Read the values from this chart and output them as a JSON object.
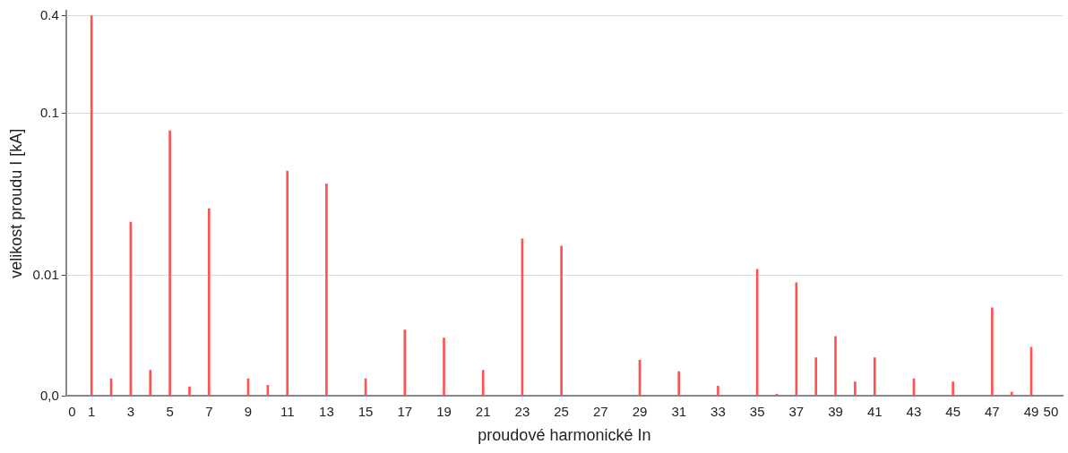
{
  "chart_data": {
    "type": "bar",
    "xlabel": "proudové harmonické In",
    "ylabel": "velikost proudu I [kA]",
    "x": [
      1,
      2,
      3,
      4,
      5,
      6,
      7,
      9,
      10,
      11,
      13,
      15,
      17,
      19,
      21,
      23,
      25,
      29,
      31,
      33,
      35,
      36,
      37,
      38,
      39,
      40,
      41,
      43,
      45,
      47,
      48,
      49
    ],
    "values": [
      0.4,
      0.0023,
      0.0213,
      0.0026,
      0.078,
      0.00205,
      0.0258,
      0.0023,
      0.0021,
      0.044,
      0.0367,
      0.0023,
      0.0046,
      0.0041,
      0.0026,
      0.0168,
      0.0152,
      0.003,
      0.00255,
      0.00207,
      0.0109,
      0.00185,
      0.009,
      0.0031,
      0.0042,
      0.0022,
      0.0031,
      0.0023,
      0.0022,
      0.0063,
      0.0019,
      0.0036
    ],
    "color": "#ff5252",
    "log": "y",
    "grid": "y",
    "xlim": [
      -0.3,
      50.6
    ],
    "xticks": [
      0,
      1,
      3,
      5,
      7,
      9,
      11,
      13,
      15,
      17,
      19,
      21,
      23,
      25,
      27,
      29,
      31,
      33,
      35,
      37,
      39,
      41,
      43,
      45,
      47,
      49,
      50
    ],
    "ylim": [
      0.0018,
      0.43
    ],
    "yticks": [
      {
        "value": 0.0018,
        "label": "0,0"
      },
      0.01,
      0.1,
      0.4
    ]
  }
}
